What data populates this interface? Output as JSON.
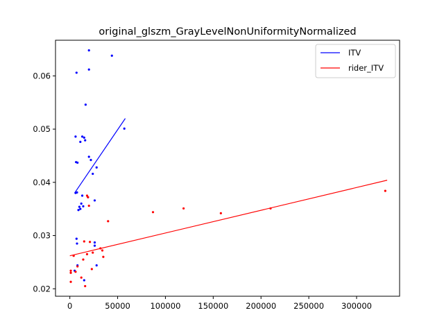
{
  "chart_data": {
    "type": "scatter",
    "title": "original_glszm_GrayLevelNonUniformityNormalized",
    "xlabel": "",
    "ylabel": "",
    "xlim": [
      -15000,
      345000
    ],
    "ylim": [
      0.0186,
      0.0667
    ],
    "x_ticks": [
      0,
      50000,
      100000,
      150000,
      200000,
      250000,
      300000
    ],
    "x_tick_labels": [
      "0",
      "50000",
      "100000",
      "150000",
      "200000",
      "250000",
      "300000"
    ],
    "y_ticks": [
      0.02,
      0.03,
      0.04,
      0.05,
      0.06
    ],
    "y_tick_labels": [
      "0.02",
      "0.03",
      "0.04",
      "0.05",
      "0.06"
    ],
    "legend": {
      "placement": "top-right"
    },
    "series": [
      {
        "name": "ITV",
        "color": "#0000ff",
        "points": [
          [
            7000,
            0.0606
          ],
          [
            20000,
            0.0648
          ],
          [
            44000,
            0.0638
          ],
          [
            20000,
            0.0612
          ],
          [
            16500,
            0.0546
          ],
          [
            57000,
            0.0501
          ],
          [
            6000,
            0.0486
          ],
          [
            13000,
            0.0486
          ],
          [
            15000,
            0.0484
          ],
          [
            11000,
            0.0476
          ],
          [
            16000,
            0.0479
          ],
          [
            20000,
            0.0448
          ],
          [
            22000,
            0.0442
          ],
          [
            6500,
            0.0438
          ],
          [
            8000,
            0.0437
          ],
          [
            28000,
            0.0428
          ],
          [
            24000,
            0.0416
          ],
          [
            6000,
            0.038
          ],
          [
            7500,
            0.0381
          ],
          [
            13000,
            0.0375
          ],
          [
            19000,
            0.0372
          ],
          [
            26000,
            0.0366
          ],
          [
            12000,
            0.036
          ],
          [
            10000,
            0.0354
          ],
          [
            14000,
            0.0355
          ],
          [
            9000,
            0.0348
          ],
          [
            11000,
            0.035
          ],
          [
            7000,
            0.0294
          ],
          [
            7500,
            0.0285
          ],
          [
            26000,
            0.0287
          ],
          [
            26000,
            0.0281
          ],
          [
            8000,
            0.0244
          ],
          [
            28000,
            0.0244
          ],
          [
            5000,
            0.0234
          ],
          [
            15000,
            0.0216
          ]
        ],
        "fit": {
          "x": [
            5000,
            58000
          ],
          "y": [
            0.038,
            0.052
          ]
        }
      },
      {
        "name": "rider_ITV",
        "color": "#ff0000",
        "points": [
          [
            330000,
            0.0384
          ],
          [
            18000,
            0.0375
          ],
          [
            19000,
            0.0372
          ],
          [
            119000,
            0.0351
          ],
          [
            210000,
            0.0351
          ],
          [
            20000,
            0.0356
          ],
          [
            87000,
            0.0344
          ],
          [
            158000,
            0.0342
          ],
          [
            40000,
            0.0327
          ],
          [
            15000,
            0.0289
          ],
          [
            21000,
            0.0288
          ],
          [
            34000,
            0.0272
          ],
          [
            32000,
            0.0276
          ],
          [
            24000,
            0.0268
          ],
          [
            4000,
            0.0262
          ],
          [
            18000,
            0.0265
          ],
          [
            35000,
            0.026
          ],
          [
            14000,
            0.0255
          ],
          [
            8000,
            0.0242
          ],
          [
            23000,
            0.0237
          ],
          [
            1000,
            0.0234
          ],
          [
            6000,
            0.0232
          ],
          [
            1000,
            0.023
          ],
          [
            12000,
            0.0221
          ],
          [
            1000,
            0.0213
          ],
          [
            16000,
            0.0205
          ]
        ],
        "fit": {
          "x": [
            0,
            332000
          ],
          "y": [
            0.0262,
            0.0404
          ]
        }
      }
    ]
  }
}
